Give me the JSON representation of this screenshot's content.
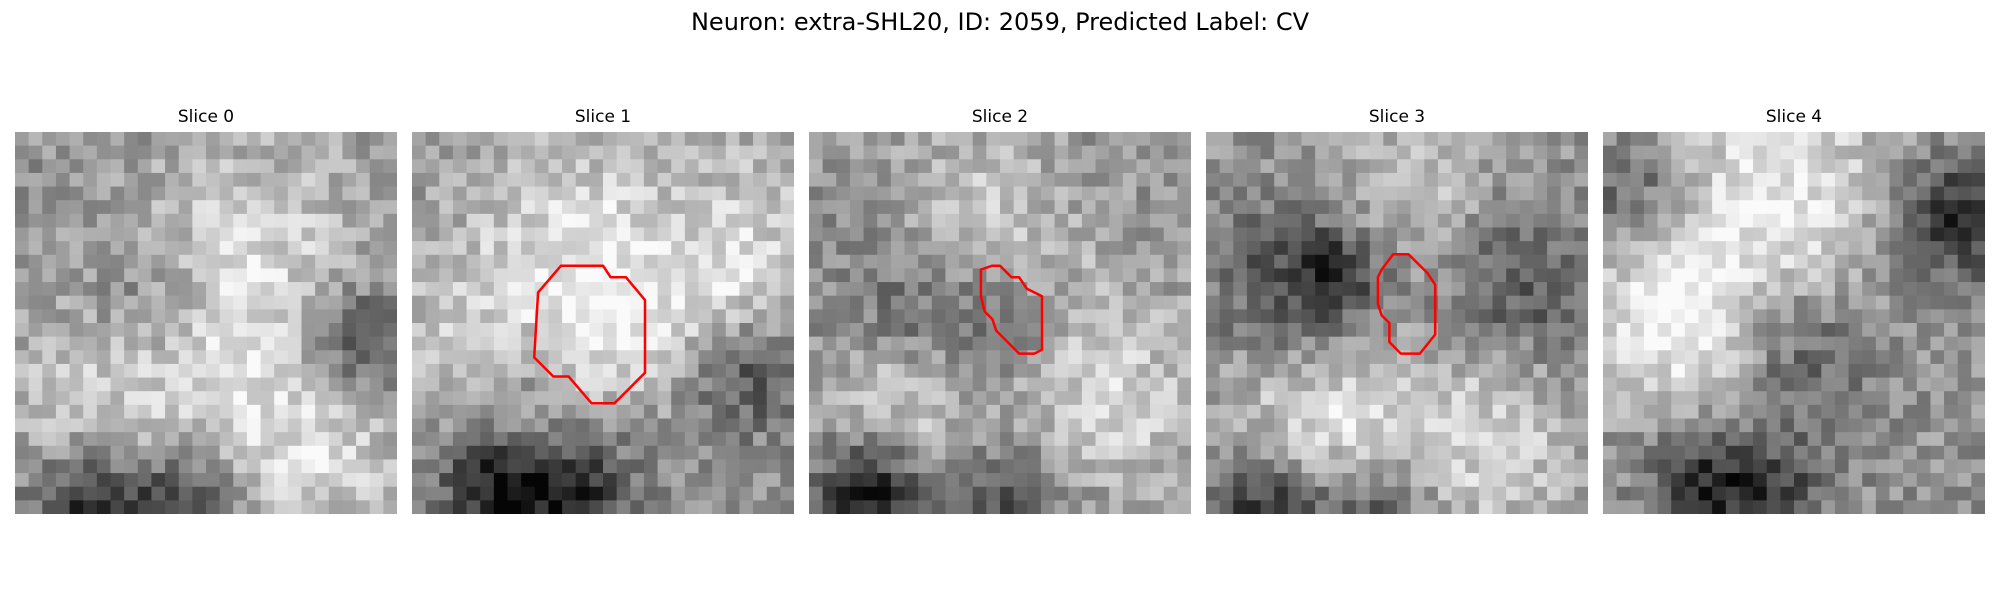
{
  "figure": {
    "title": "Neuron: extra-SHL20, ID: 2059, Predicted Label: CV"
  },
  "slices": [
    {
      "label": "Slice 0",
      "has_contour": false
    },
    {
      "label": "Slice 1",
      "has_contour": true
    },
    {
      "label": "Slice 2",
      "has_contour": true
    },
    {
      "label": "Slice 3",
      "has_contour": true
    },
    {
      "label": "Slice 4",
      "has_contour": false
    }
  ],
  "colors": {
    "contour": "#ff0000",
    "background": "#ffffff"
  }
}
